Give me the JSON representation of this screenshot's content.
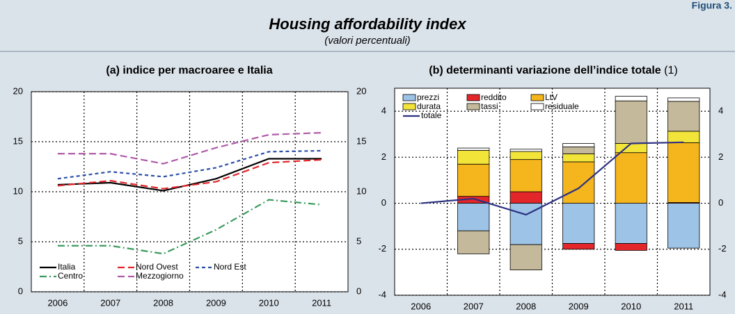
{
  "header": {
    "figure": "Figura 3.",
    "title": "Housing affordability index",
    "subtitle": "(valori percentuali)"
  },
  "chart_data": [
    {
      "type": "line",
      "title": "(a) indice per macroaree e Italia",
      "categories": [
        "2006",
        "2007",
        "2008",
        "2009",
        "2010",
        "2011"
      ],
      "series": [
        {
          "name": "Italia",
          "color": "#000000",
          "style": "solid",
          "values": [
            10.7,
            10.9,
            10.1,
            11.3,
            13.3,
            13.3
          ]
        },
        {
          "name": "Nord Ovest",
          "color": "#e3262a",
          "style": "dashed",
          "values": [
            10.6,
            11.1,
            10.3,
            11.0,
            12.9,
            13.2
          ]
        },
        {
          "name": "Nord Est",
          "color": "#2b4fa8",
          "style": "dotted",
          "values": [
            11.3,
            12.0,
            11.5,
            12.4,
            14.0,
            14.1
          ]
        },
        {
          "name": "Centro",
          "color": "#3a9a5c",
          "style": "dashdot",
          "values": [
            4.6,
            4.6,
            3.8,
            6.2,
            9.2,
            8.7
          ]
        },
        {
          "name": "Mezzogiorno",
          "color": "#b05aa8",
          "style": "dashed",
          "values": [
            13.8,
            13.8,
            12.8,
            14.4,
            15.7,
            15.9
          ]
        }
      ],
      "ylim": [
        0,
        20
      ],
      "yticks": [
        0,
        5,
        10,
        15,
        20
      ],
      "grid": true,
      "legend": "lower left"
    },
    {
      "type": "bar",
      "stacked": true,
      "title": "(b) determinanti variazione dell’indice totale",
      "title_note": "(1)",
      "categories": [
        "2006",
        "2007",
        "2008",
        "2009",
        "2010",
        "2011"
      ],
      "series": [
        {
          "name": "prezzi",
          "color": "#9dc3e6",
          "values": [
            null,
            -1.2,
            -1.8,
            -1.75,
            -1.75,
            -1.95
          ]
        },
        {
          "name": "reddito",
          "color": "#e3262a",
          "values": [
            null,
            0.3,
            0.5,
            -0.25,
            -0.3,
            0.03
          ]
        },
        {
          "name": "LtV",
          "color": "#f5b51c",
          "values": [
            null,
            1.4,
            1.4,
            1.8,
            2.2,
            2.6
          ]
        },
        {
          "name": "durata",
          "color": "#f3e43a",
          "values": [
            null,
            0.6,
            0.35,
            0.35,
            0.4,
            0.5
          ]
        },
        {
          "name": "tassi",
          "color": "#c4b99a",
          "values": [
            null,
            -1.0,
            -1.1,
            0.3,
            1.85,
            1.3
          ]
        },
        {
          "name": "residuale",
          "color": "#ffffff",
          "values": [
            null,
            0.1,
            0.1,
            0.15,
            0.2,
            0.15
          ]
        },
        {
          "name": "totale",
          "type": "line",
          "style": "solid",
          "color": "#2c3182",
          "values": [
            0,
            0.2,
            -0.5,
            0.65,
            2.6,
            2.65
          ]
        }
      ],
      "ylim": [
        -4,
        5
      ],
      "yticks": [
        -4,
        -2,
        0,
        2,
        4
      ],
      "grid": true,
      "legend": "upper left"
    }
  ]
}
